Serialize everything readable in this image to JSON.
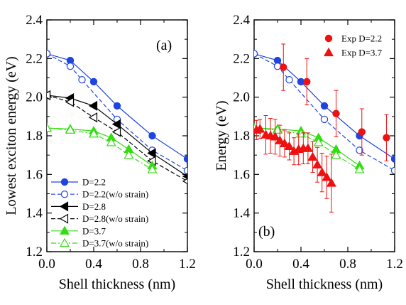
{
  "chart_data": [
    {
      "type": "line",
      "panel_label": "(a)",
      "xlabel": "Shell thickness (nm)",
      "ylabel": "Lowest exciton energy (eV)",
      "xlim": [
        0,
        1.2
      ],
      "ylim": [
        1.2,
        2.4
      ],
      "xticks": [
        "0.0",
        "0.4",
        "0.8",
        "1.2"
      ],
      "yticks": [
        "1.2",
        "1.4",
        "1.6",
        "1.8",
        "2.0",
        "2.2",
        "2.4"
      ],
      "legend_position": "bottom-left",
      "series": [
        {
          "name": "D=2.2",
          "color": "#1f44e0",
          "dash": "solid",
          "marker": "circle",
          "filled": true,
          "x": [
            0.0,
            0.2,
            0.4,
            0.6,
            0.9,
            1.2
          ],
          "y": [
            2.225,
            2.19,
            2.08,
            1.955,
            1.8,
            1.68
          ]
        },
        {
          "name": "D=2.2(w/o strain)",
          "color": "#1f44e0",
          "dash": "dash",
          "marker": "circle",
          "filled": false,
          "x": [
            0.0,
            0.2,
            0.3,
            0.6,
            0.9,
            1.2
          ],
          "y": [
            2.225,
            2.16,
            2.09,
            1.885,
            1.725,
            1.62
          ]
        },
        {
          "name": "D=2.8",
          "color": "#000000",
          "dash": "solid",
          "marker": "triangle-left",
          "filled": true,
          "x": [
            0.0,
            0.2,
            0.4,
            0.6,
            0.9,
            1.2
          ],
          "y": [
            2.01,
            1.995,
            1.955,
            1.86,
            1.71,
            1.59
          ]
        },
        {
          "name": "D=2.8(w/o strain)",
          "color": "#000000",
          "dash": "dash",
          "marker": "triangle-left",
          "filled": false,
          "x": [
            0.0,
            0.2,
            0.4,
            0.6,
            0.9,
            1.2
          ],
          "y": [
            2.01,
            1.975,
            1.895,
            1.82,
            1.67,
            1.565
          ]
        },
        {
          "name": "D=3.7",
          "color": "#33dd11",
          "dash": "solid",
          "marker": "triangle-up",
          "filled": true,
          "x": [
            0.0,
            0.2,
            0.4,
            0.55,
            0.7,
            0.9
          ],
          "y": [
            1.84,
            1.835,
            1.825,
            1.79,
            1.73,
            1.645
          ]
        },
        {
          "name": "D=3.7(w/o strain)",
          "color": "#33dd11",
          "dash": "dashdot",
          "marker": "triangle-up",
          "filled": false,
          "x": [
            0.0,
            0.2,
            0.4,
            0.55,
            0.7,
            0.9
          ],
          "y": [
            1.84,
            1.83,
            1.81,
            1.765,
            1.7,
            1.625
          ]
        }
      ]
    },
    {
      "type": "line",
      "panel_label": "(b)",
      "xlabel": "Shell thickness (nm)",
      "ylabel": "Energy (eV)",
      "xlim": [
        0,
        1.2
      ],
      "ylim": [
        1.2,
        2.4
      ],
      "xticks": [
        "0.0",
        "0.4",
        "0.8",
        "1.2"
      ],
      "yticks": [
        "1.2",
        "1.4",
        "1.6",
        "1.8",
        "2.0",
        "2.2",
        "2.4"
      ],
      "legend_position": "top-right",
      "series": [
        {
          "name": "",
          "color": "#1f44e0",
          "dash": "solid",
          "marker": "circle",
          "filled": true,
          "x": [
            0.0,
            0.2,
            0.4,
            0.6,
            0.9,
            1.2
          ],
          "y": [
            2.225,
            2.19,
            2.08,
            1.955,
            1.8,
            1.68
          ]
        },
        {
          "name": "",
          "color": "#1f44e0",
          "dash": "dash",
          "marker": "circle",
          "filled": false,
          "x": [
            0.0,
            0.2,
            0.3,
            0.6,
            0.9,
            1.2
          ],
          "y": [
            2.225,
            2.16,
            2.09,
            1.885,
            1.725,
            1.62
          ]
        },
        {
          "name": "",
          "color": "#33dd11",
          "dash": "solid",
          "marker": "triangle-up",
          "filled": true,
          "x": [
            0.0,
            0.2,
            0.4,
            0.55,
            0.7,
            0.9
          ],
          "y": [
            1.84,
            1.835,
            1.825,
            1.79,
            1.73,
            1.645
          ]
        },
        {
          "name": "",
          "color": "#33dd11",
          "dash": "dashdot",
          "marker": "triangle-up",
          "filled": false,
          "x": [
            0.0,
            0.2,
            0.4,
            0.55,
            0.7,
            0.9
          ],
          "y": [
            1.84,
            1.83,
            1.81,
            1.765,
            1.7,
            1.625
          ]
        },
        {
          "name": "Exp D=2.2",
          "color": "#ee1111",
          "dash": "none",
          "marker": "circle",
          "filled": true,
          "x": [
            0.25,
            0.45,
            0.7,
            0.92,
            1.13
          ],
          "y": [
            2.155,
            2.08,
            1.915,
            1.82,
            1.79
          ],
          "err": [
            0.12,
            0.12,
            0.12,
            0.12,
            0.12
          ]
        },
        {
          "name": "Exp D=3.7",
          "color": "#ee1111",
          "dash": "none",
          "marker": "triangle-up",
          "filled": true,
          "x": [
            0.02,
            0.05,
            0.1,
            0.14,
            0.18,
            0.22,
            0.26,
            0.3,
            0.34,
            0.38,
            0.42,
            0.46,
            0.5,
            0.54,
            0.58,
            0.62,
            0.66
          ],
          "y": [
            1.83,
            1.835,
            1.805,
            1.8,
            1.795,
            1.775,
            1.76,
            1.745,
            1.72,
            1.73,
            1.735,
            1.735,
            1.69,
            1.65,
            1.61,
            1.585,
            1.555
          ],
          "err": [
            0.05,
            0.05,
            0.1,
            0.09,
            0.09,
            0.08,
            0.07,
            0.07,
            0.07,
            0.08,
            0.08,
            0.08,
            0.08,
            0.09,
            0.1,
            0.11,
            0.15
          ]
        }
      ]
    }
  ]
}
